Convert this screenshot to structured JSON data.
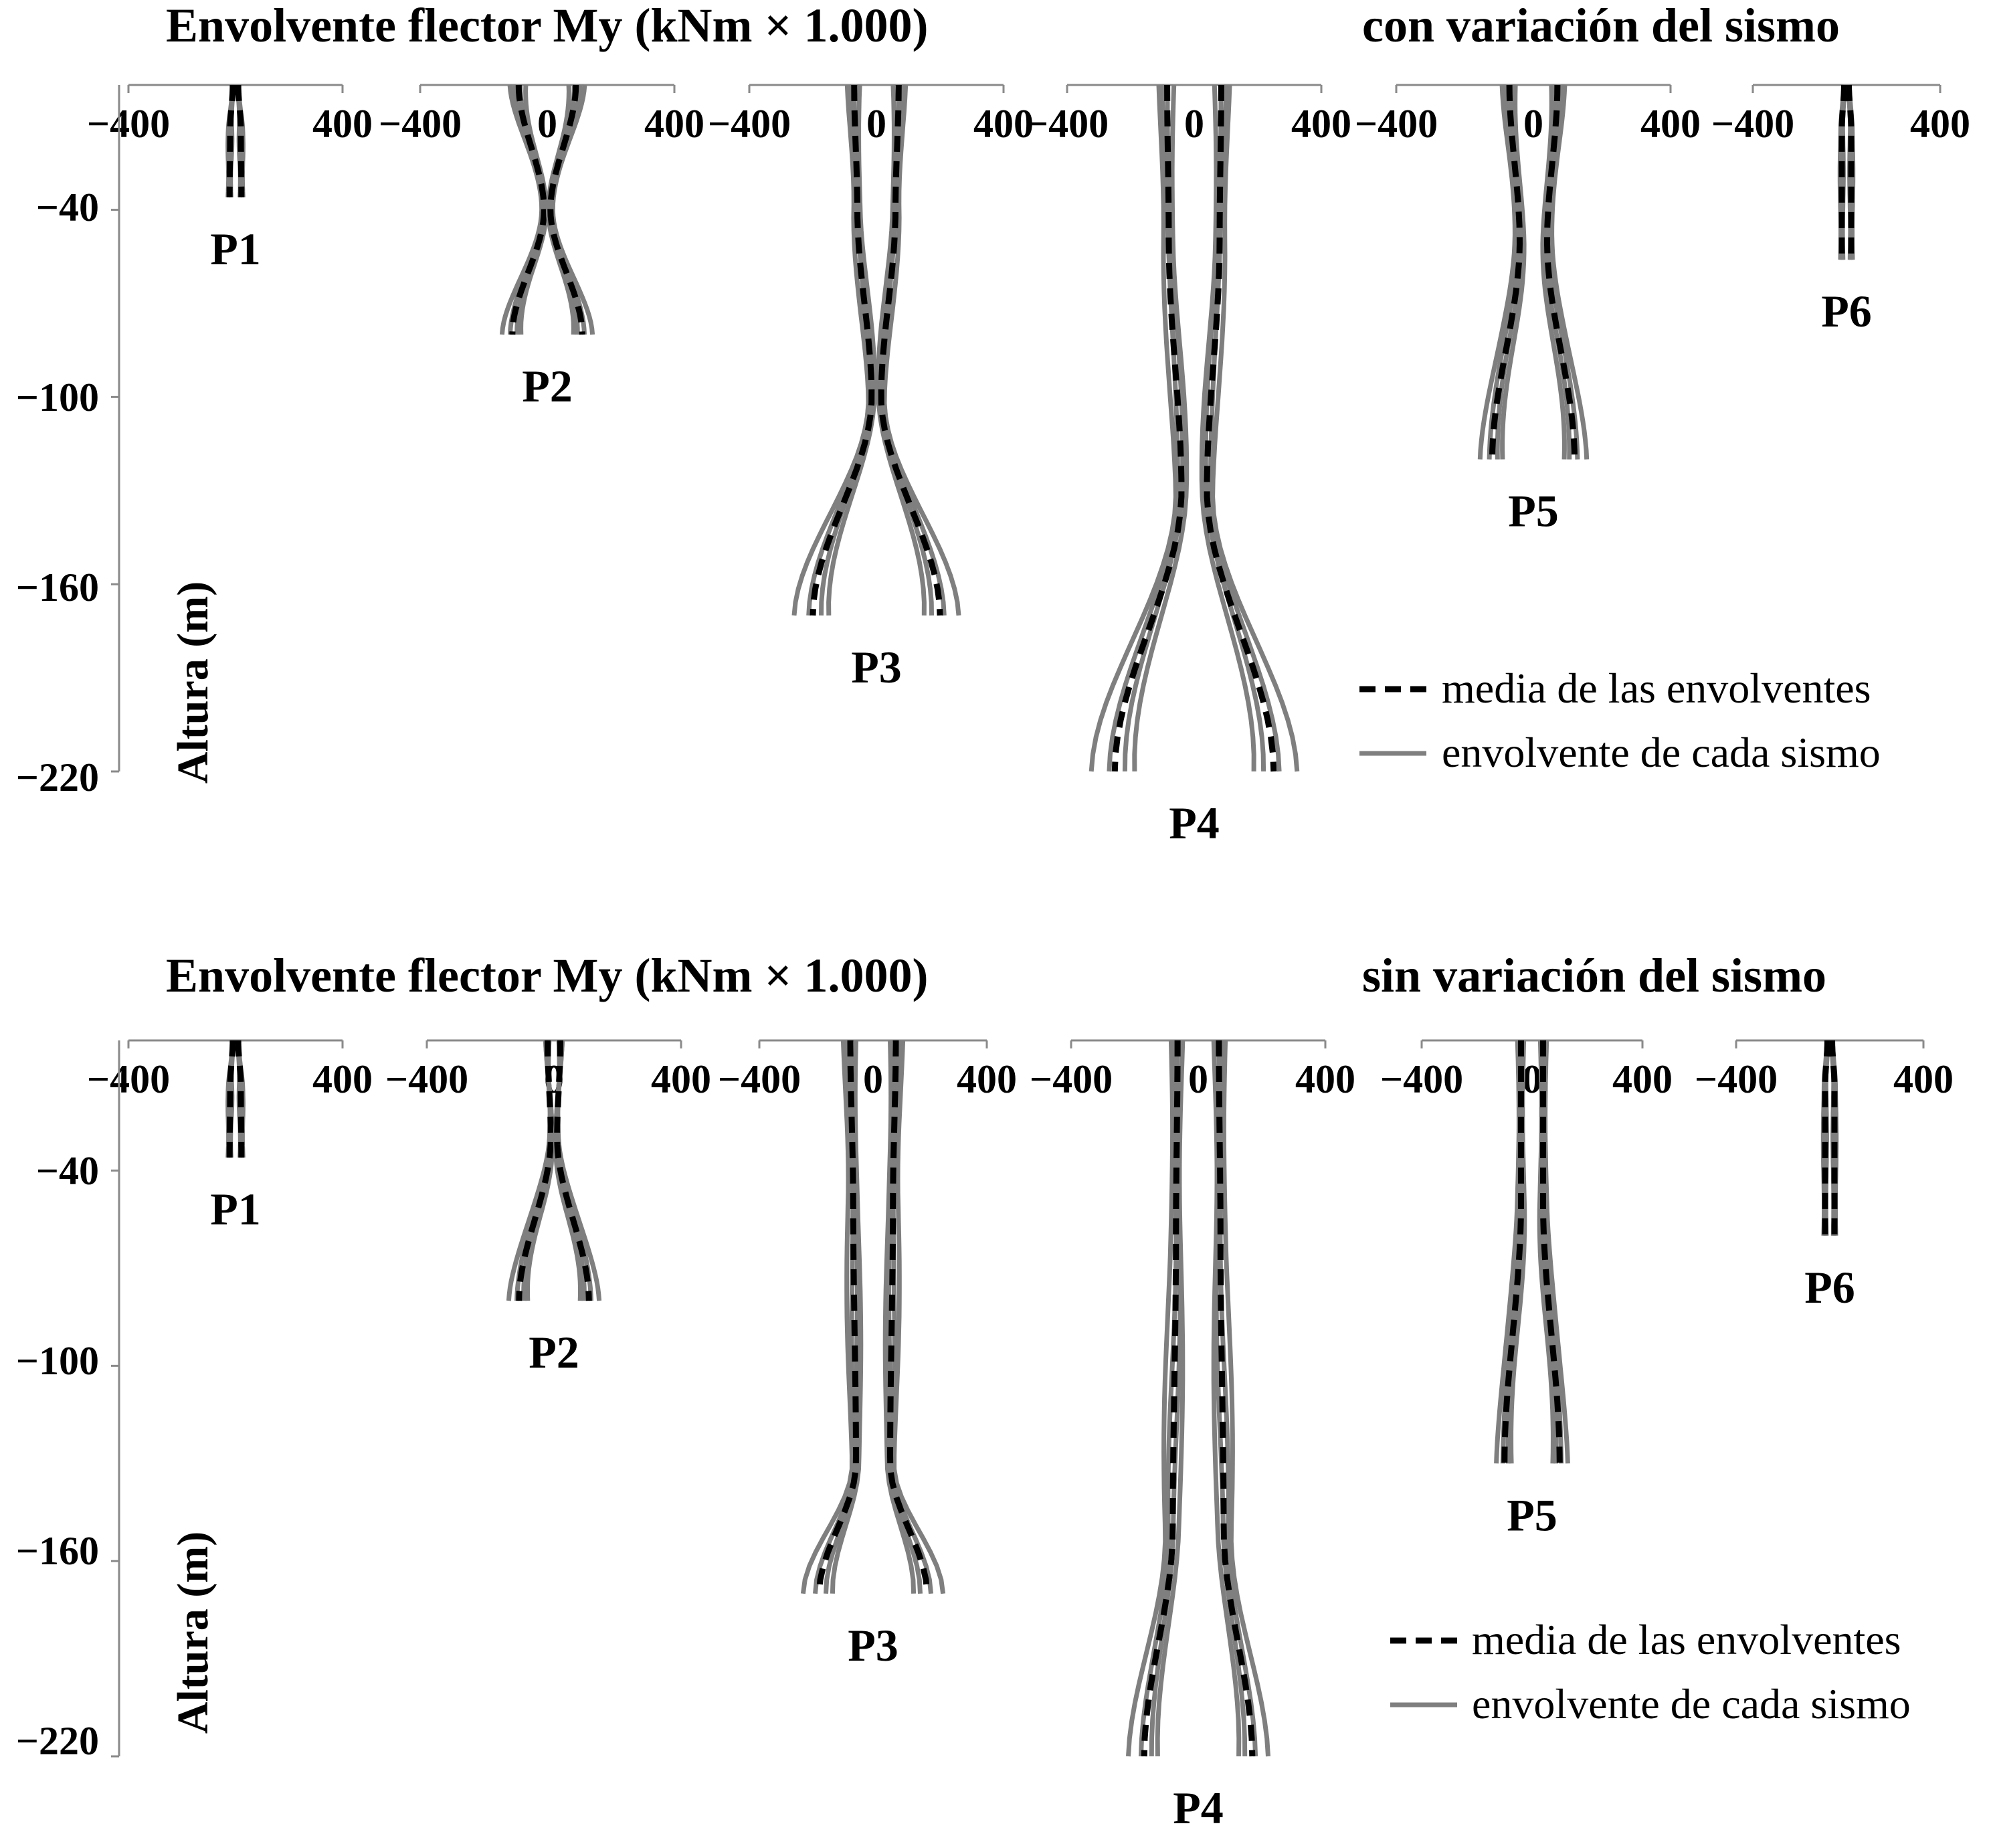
{
  "chart_data": [
    {
      "type": "line",
      "title_left": "Envolvente flector My (kNm × 1.000)",
      "title_right": "con variación del sismo",
      "ylabel": "Altura (m)",
      "xlim": [
        -400,
        400
      ],
      "ylim": [
        -220,
        0
      ],
      "yticks": [
        "−40",
        "−100",
        "−160",
        "−220"
      ],
      "xtick_labels": [
        "−400",
        "0",
        "400"
      ],
      "legend": {
        "mean": "media de las envolventes",
        "each": "envolvente de cada sismo"
      },
      "piles": [
        {
          "label": "P1",
          "depth": 36,
          "mean_y": [
            0,
            -14,
            -36
          ],
          "mean_x": [
            10,
            20,
            22
          ],
          "spread": 14,
          "show_zero": false
        },
        {
          "label": "P2",
          "depth": 80,
          "mean_y": [
            0,
            -40,
            -80
          ],
          "mean_x": [
            90,
            10,
            110
          ],
          "spread": 30,
          "show_zero": true
        },
        {
          "label": "P3",
          "depth": 170,
          "mean_y": [
            0,
            -40,
            -100,
            -170
          ],
          "mean_x": [
            70,
            60,
            15,
            200
          ],
          "spread": 50,
          "show_zero": true
        },
        {
          "label": "P4",
          "depth": 220,
          "mean_y": [
            0,
            -50,
            -130,
            -220
          ],
          "mean_x": [
            85,
            80,
            40,
            250
          ],
          "spread": 55,
          "show_zero": true
        },
        {
          "label": "P5",
          "depth": 120,
          "mean_y": [
            0,
            -50,
            -120
          ],
          "mean_x": [
            70,
            40,
            120
          ],
          "spread": 25,
          "show_zero": true
        },
        {
          "label": "P6",
          "depth": 56,
          "mean_y": [
            0,
            -14,
            -56
          ],
          "mean_x": [
            10,
            20,
            20
          ],
          "spread": 12,
          "show_zero": false
        }
      ]
    },
    {
      "type": "line",
      "title_left": "Envolvente flector My (kNm × 1.000)",
      "title_right": "sin variación del sismo",
      "ylabel": "Altura (m)",
      "xlim": [
        -400,
        400
      ],
      "ylim": [
        -220,
        0
      ],
      "yticks": [
        "−40",
        "−100",
        "−160",
        "−220"
      ],
      "xtick_labels": [
        "−400",
        "0",
        "400"
      ],
      "legend": {
        "mean": "media de las envolventes",
        "each": "envolvente de cada sismo"
      },
      "piles": [
        {
          "label": "P1",
          "depth": 36,
          "mean_y": [
            0,
            -14,
            -36
          ],
          "mean_x": [
            10,
            20,
            22
          ],
          "spread": 14,
          "show_zero": false
        },
        {
          "label": "P2",
          "depth": 80,
          "mean_y": [
            0,
            -30,
            -80
          ],
          "mean_x": [
            20,
            10,
            110
          ],
          "spread": 30,
          "show_zero": true
        },
        {
          "label": "P3",
          "depth": 170,
          "mean_y": [
            0,
            -50,
            -130,
            -170
          ],
          "mean_x": [
            80,
            70,
            60,
            190
          ],
          "spread": 40,
          "show_zero": true
        },
        {
          "label": "P4",
          "depth": 220,
          "mean_y": [
            0,
            -60,
            -150,
            -220
          ],
          "mean_x": [
            65,
            70,
            80,
            170
          ],
          "spread": 50,
          "show_zero": true
        },
        {
          "label": "P5",
          "depth": 130,
          "mean_y": [
            0,
            -50,
            -130
          ],
          "mean_x": [
            40,
            40,
            100
          ],
          "spread": 30,
          "show_zero": true
        },
        {
          "label": "P6",
          "depth": 60,
          "mean_y": [
            0,
            -14,
            -60
          ],
          "mean_x": [
            10,
            20,
            20
          ],
          "spread": 12,
          "show_zero": false
        }
      ]
    }
  ]
}
